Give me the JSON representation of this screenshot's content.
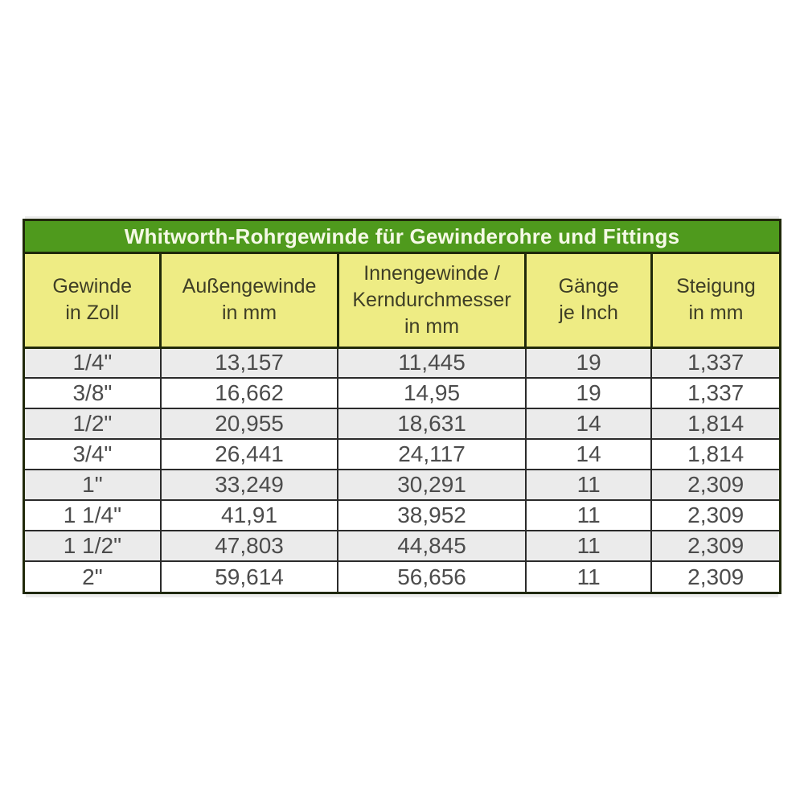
{
  "table": {
    "title": "Whitworth-Rohrgewinde für Gewinderohre und Fittings",
    "headers": [
      "Gewinde\nin Zoll",
      "Außengewinde\nin mm",
      "Innengewinde /\nKerndurchmesser\nin mm",
      "Gänge\nje Inch",
      "Steigung\nin mm"
    ],
    "rows": [
      [
        "1/4\"",
        "13,157",
        "11,445",
        "19",
        "1,337"
      ],
      [
        "3/8\"",
        "16,662",
        "14,95",
        "19",
        "1,337"
      ],
      [
        "1/2\"",
        "20,955",
        "18,631",
        "14",
        "1,814"
      ],
      [
        "3/4\"",
        "26,441",
        "24,117",
        "14",
        "1,814"
      ],
      [
        "1\"",
        "33,249",
        "30,291",
        "11",
        "2,309"
      ],
      [
        "1 1/4\"",
        "41,91",
        "38,952",
        "11",
        "2,309"
      ],
      [
        "1 1/2\"",
        "47,803",
        "44,845",
        "11",
        "2,309"
      ],
      [
        "2\"",
        "59,614",
        "56,656",
        "11",
        "2,309"
      ]
    ],
    "colors": {
      "title_bg": "#4f9a1d",
      "title_text": "#f5f9e6",
      "header_bg": "#eeec84",
      "header_text": "#3e3e26",
      "row_bg": "#ffffff",
      "row_alt_bg": "#ebebeb",
      "data_text": "#4c4c4c",
      "border_dark": "#20290a",
      "grid": "#2b2b2b"
    }
  },
  "chart_data": {
    "type": "table",
    "title": "Whitworth-Rohrgewinde für Gewinderohre und Fittings",
    "columns": [
      "Gewinde in Zoll",
      "Außengewinde in mm",
      "Innengewinde / Kerndurchmesser in mm",
      "Gänge je Inch",
      "Steigung in mm"
    ],
    "rows": [
      [
        "1/4\"",
        "13,157",
        "11,445",
        "19",
        "1,337"
      ],
      [
        "3/8\"",
        "16,662",
        "14,95",
        "19",
        "1,337"
      ],
      [
        "1/2\"",
        "20,955",
        "18,631",
        "14",
        "1,814"
      ],
      [
        "3/4\"",
        "26,441",
        "24,117",
        "14",
        "1,814"
      ],
      [
        "1\"",
        "33,249",
        "30,291",
        "11",
        "2,309"
      ],
      [
        "1 1/4\"",
        "41,91",
        "38,952",
        "11",
        "2,309"
      ],
      [
        "1 1/2\"",
        "47,803",
        "44,845",
        "11",
        "2,309"
      ],
      [
        "2\"",
        "59,614",
        "56,656",
        "11",
        "2,309"
      ]
    ],
    "notes": "Decimal commas as printed; alternating gray/white rows; green title band; yellow header band"
  }
}
